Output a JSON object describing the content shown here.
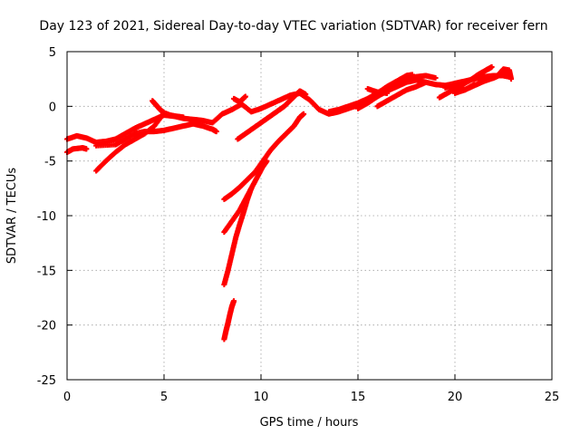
{
  "chart_data": {
    "type": "scatter",
    "title": "Day 123 of 2021, Sidereal Day-to-day VTEC variation (SDTVAR) for receiver fern",
    "xlabel": "GPS time / hours",
    "ylabel": "SDTVAR / TECUs",
    "xlim": [
      0,
      25
    ],
    "ylim": [
      -25,
      5
    ],
    "xticks": [
      "0",
      "5",
      "10",
      "15",
      "20",
      "25"
    ],
    "yticks": [
      "5",
      "0",
      "-5",
      "-10",
      "-15",
      "-20",
      "-25"
    ],
    "grid": true,
    "marker": "plus",
    "color": "#ff0000",
    "series": [
      {
        "points": [
          [
            0.0,
            -3.0
          ],
          [
            0.5,
            -2.7
          ],
          [
            1.0,
            -2.9
          ],
          [
            1.5,
            -3.3
          ],
          [
            2.0,
            -3.2
          ],
          [
            2.5,
            -3.0
          ],
          [
            3.0,
            -2.5
          ],
          [
            3.5,
            -2.0
          ],
          [
            4.0,
            -1.6
          ],
          [
            4.5,
            -1.2
          ],
          [
            5.0,
            -0.8
          ],
          [
            5.5,
            -0.9
          ],
          [
            6.0,
            -1.1
          ],
          [
            6.5,
            -1.2
          ],
          [
            7.0,
            -1.3
          ],
          [
            7.5,
            -1.5
          ],
          [
            8.0,
            -0.7
          ],
          [
            8.5,
            -0.3
          ],
          [
            9.0,
            0.2
          ],
          [
            9.5,
            -0.5
          ],
          [
            10.0,
            -0.2
          ],
          [
            10.5,
            0.2
          ],
          [
            11.0,
            0.6
          ],
          [
            11.5,
            1.0
          ],
          [
            12.0,
            1.2
          ],
          [
            12.5,
            0.6
          ],
          [
            13.0,
            -0.3
          ],
          [
            13.5,
            -0.7
          ],
          [
            14.0,
            -0.5
          ],
          [
            14.5,
            -0.2
          ],
          [
            15.0,
            0.1
          ],
          [
            15.5,
            0.4
          ],
          [
            16.0,
            0.9
          ],
          [
            16.5,
            1.4
          ],
          [
            17.0,
            1.8
          ],
          [
            17.5,
            2.2
          ],
          [
            18.0,
            2.4
          ],
          [
            18.5,
            2.2
          ],
          [
            19.0,
            2.0
          ],
          [
            19.5,
            1.9
          ],
          [
            20.0,
            2.1
          ],
          [
            20.5,
            2.3
          ],
          [
            21.0,
            2.5
          ],
          [
            21.5,
            2.7
          ],
          [
            22.0,
            2.8
          ],
          [
            22.5,
            2.8
          ],
          [
            22.8,
            2.7
          ]
        ]
      },
      {
        "points": [
          [
            0.0,
            -4.2
          ],
          [
            0.3,
            -3.9
          ],
          [
            0.8,
            -3.8
          ],
          [
            1.0,
            -3.9
          ]
        ]
      },
      {
        "points": [
          [
            1.5,
            -3.6
          ],
          [
            2.5,
            -3.5
          ],
          [
            3.0,
            -3.0
          ],
          [
            3.5,
            -2.5
          ],
          [
            4.0,
            -2.3
          ],
          [
            4.5,
            -2.3
          ],
          [
            5.0,
            -2.2
          ],
          [
            5.5,
            -2.0
          ],
          [
            6.0,
            -1.8
          ],
          [
            6.5,
            -1.6
          ],
          [
            7.0,
            -1.8
          ],
          [
            7.5,
            -2.1
          ],
          [
            7.7,
            -2.3
          ]
        ]
      },
      {
        "points": [
          [
            1.5,
            -5.9
          ],
          [
            2.0,
            -5.0
          ],
          [
            2.5,
            -4.2
          ],
          [
            3.0,
            -3.5
          ],
          [
            3.5,
            -3.0
          ],
          [
            4.0,
            -2.5
          ],
          [
            4.5,
            -1.8
          ],
          [
            5.0,
            -0.6
          ]
        ]
      },
      {
        "points": [
          [
            4.4,
            0.5
          ],
          [
            4.6,
            0.1
          ],
          [
            4.8,
            -0.3
          ],
          [
            5.0,
            -0.6
          ],
          [
            5.3,
            -0.8
          ],
          [
            5.6,
            -0.9
          ],
          [
            6.0,
            -1.0
          ]
        ]
      },
      {
        "points": [
          [
            8.6,
            0.7
          ],
          [
            8.9,
            0.4
          ],
          [
            9.2,
            0.9
          ]
        ]
      },
      {
        "points": [
          [
            8.8,
            -3.0
          ],
          [
            9.2,
            -2.5
          ],
          [
            9.6,
            -2.0
          ],
          [
            10.0,
            -1.5
          ],
          [
            10.4,
            -1.0
          ],
          [
            10.8,
            -0.5
          ],
          [
            11.2,
            0.0
          ],
          [
            11.6,
            0.7
          ],
          [
            12.0,
            1.4
          ],
          [
            12.3,
            1.1
          ]
        ]
      },
      {
        "points": [
          [
            8.1,
            -8.5
          ],
          [
            8.5,
            -8.0
          ],
          [
            8.9,
            -7.4
          ],
          [
            9.3,
            -6.7
          ],
          [
            9.7,
            -6.0
          ],
          [
            10.1,
            -5.0
          ],
          [
            10.5,
            -4.0
          ],
          [
            10.9,
            -3.2
          ],
          [
            11.3,
            -2.5
          ],
          [
            11.7,
            -1.8
          ],
          [
            12.0,
            -1.0
          ],
          [
            12.2,
            -0.7
          ]
        ]
      },
      {
        "points": [
          [
            8.1,
            -11.5
          ],
          [
            8.5,
            -10.5
          ],
          [
            8.9,
            -9.5
          ],
          [
            9.2,
            -8.5
          ],
          [
            9.5,
            -7.5
          ],
          [
            9.8,
            -6.5
          ],
          [
            10.1,
            -5.5
          ],
          [
            10.3,
            -5.0
          ]
        ]
      },
      {
        "points": [
          [
            8.1,
            -16.3
          ],
          [
            8.3,
            -15.0
          ],
          [
            8.5,
            -13.5
          ],
          [
            8.7,
            -12.0
          ],
          [
            8.9,
            -10.8
          ],
          [
            9.1,
            -9.7
          ],
          [
            9.3,
            -8.5
          ],
          [
            9.5,
            -7.5
          ]
        ]
      },
      {
        "points": [
          [
            8.1,
            -21.3
          ],
          [
            8.2,
            -20.5
          ],
          [
            8.3,
            -19.8
          ],
          [
            8.4,
            -19.0
          ],
          [
            8.5,
            -18.3
          ],
          [
            8.6,
            -17.8
          ]
        ]
      },
      {
        "points": [
          [
            13.5,
            -0.5
          ],
          [
            14.0,
            -0.3
          ],
          [
            14.5,
            0.0
          ],
          [
            15.0,
            0.3
          ],
          [
            15.5,
            0.7
          ],
          [
            16.0,
            1.2
          ],
          [
            16.5,
            1.8
          ],
          [
            17.0,
            2.3
          ],
          [
            17.5,
            2.8
          ],
          [
            17.8,
            2.9
          ]
        ]
      },
      {
        "points": [
          [
            15.0,
            -0.2
          ],
          [
            15.5,
            0.3
          ],
          [
            16.0,
            0.9
          ],
          [
            16.5,
            1.5
          ],
          [
            17.0,
            2.0
          ],
          [
            17.5,
            2.4
          ],
          [
            18.0,
            2.7
          ],
          [
            18.5,
            2.8
          ],
          [
            19.0,
            2.6
          ]
        ]
      },
      {
        "points": [
          [
            16.0,
            0.0
          ],
          [
            16.5,
            0.5
          ],
          [
            17.0,
            1.0
          ],
          [
            17.5,
            1.5
          ],
          [
            18.0,
            1.8
          ],
          [
            18.5,
            2.2
          ]
        ]
      },
      {
        "points": [
          [
            15.5,
            1.6
          ],
          [
            16.0,
            1.3
          ],
          [
            16.5,
            1.2
          ]
        ]
      },
      {
        "points": [
          [
            19.5,
            1.7
          ],
          [
            20.0,
            2.0
          ],
          [
            20.5,
            1.5
          ],
          [
            21.0,
            2.0
          ]
        ]
      },
      {
        "points": [
          [
            19.2,
            0.8
          ],
          [
            19.6,
            1.2
          ],
          [
            20.0,
            1.6
          ],
          [
            20.4,
            2.0
          ],
          [
            20.8,
            2.4
          ],
          [
            21.2,
            2.9
          ],
          [
            21.6,
            3.3
          ],
          [
            21.9,
            3.6
          ]
        ]
      },
      {
        "points": [
          [
            20.0,
            1.2
          ],
          [
            20.5,
            1.5
          ],
          [
            21.0,
            1.9
          ],
          [
            21.5,
            2.3
          ],
          [
            22.0,
            2.6
          ],
          [
            22.5,
            3.0
          ],
          [
            22.8,
            3.2
          ]
        ]
      },
      {
        "points": [
          [
            21.8,
            2.6
          ],
          [
            22.2,
            2.8
          ],
          [
            22.5,
            3.4
          ],
          [
            22.8,
            3.3
          ],
          [
            22.9,
            2.5
          ]
        ]
      }
    ]
  }
}
